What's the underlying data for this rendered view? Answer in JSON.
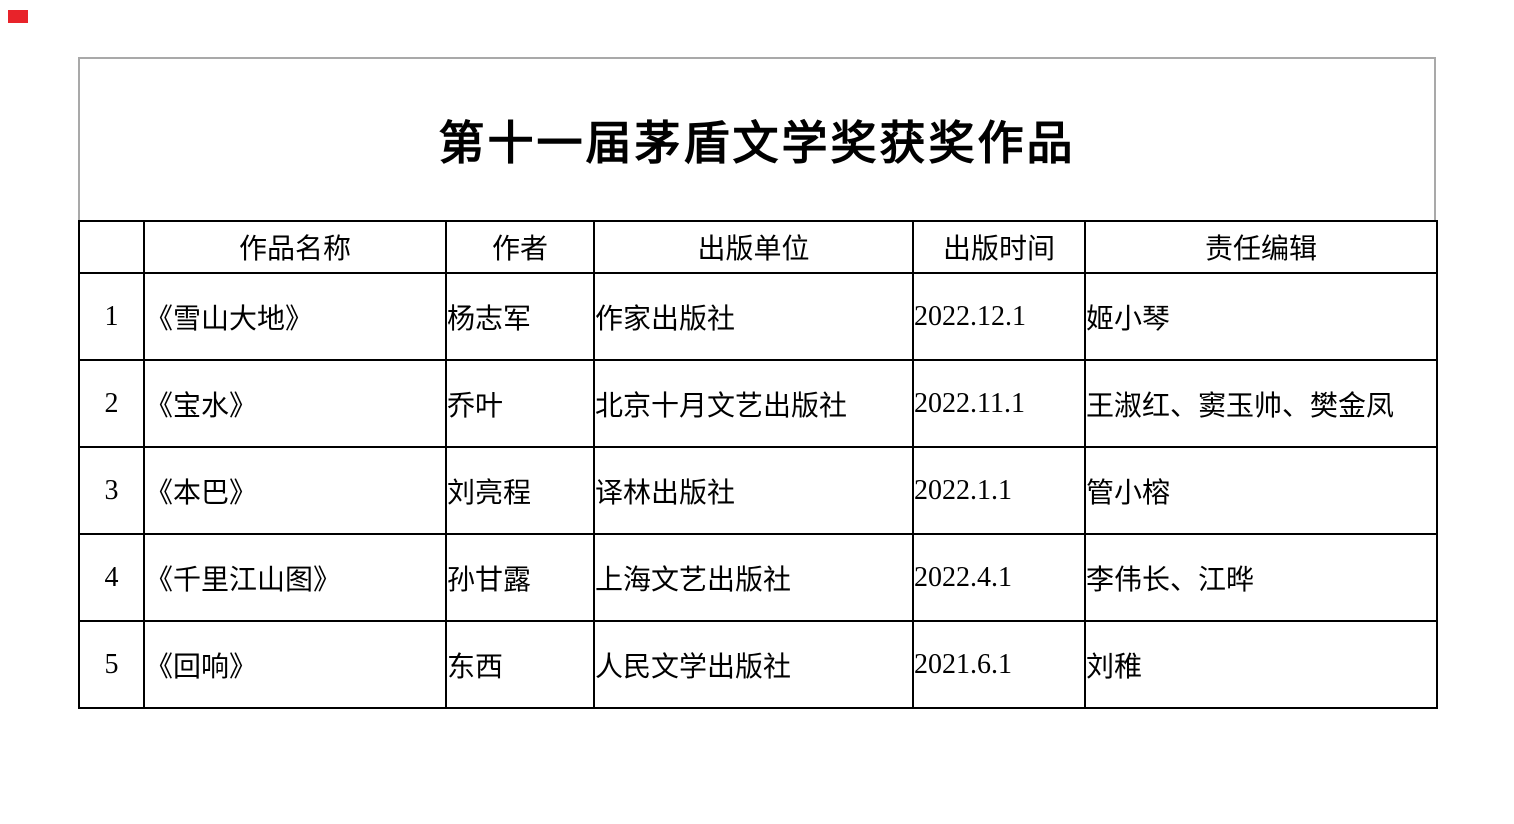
{
  "title": "第十一届茅盾文学奖获奖作品",
  "decoration": {
    "red_marker_color": "#e8232a"
  },
  "colors": {
    "title_block_border": "#a9a9a9",
    "table_border": "#000000",
    "text": "#000000",
    "background": "#ffffff"
  },
  "table": {
    "headers": [
      "",
      "作品名称",
      "作者",
      "出版单位",
      "出版时间",
      "责任编辑"
    ],
    "rows": [
      [
        "1",
        "《雪山大地》",
        "杨志军",
        "作家出版社",
        "2022.12.1",
        "姬小琴"
      ],
      [
        "2",
        "《宝水》",
        "乔叶",
        "北京十月文艺出版社",
        "2022.11.1",
        "王淑红、窦玉帅、樊金凤"
      ],
      [
        "3",
        "《本巴》",
        "刘亮程",
        "译林出版社",
        "2022.1.1",
        "管小榕"
      ],
      [
        "4",
        "《千里江山图》",
        "孙甘露",
        "上海文艺出版社",
        "2022.4.1",
        "李伟长、江晔"
      ],
      [
        "5",
        "《回响》",
        "东西",
        "人民文学出版社",
        "2021.6.1",
        "刘稚"
      ]
    ]
  }
}
